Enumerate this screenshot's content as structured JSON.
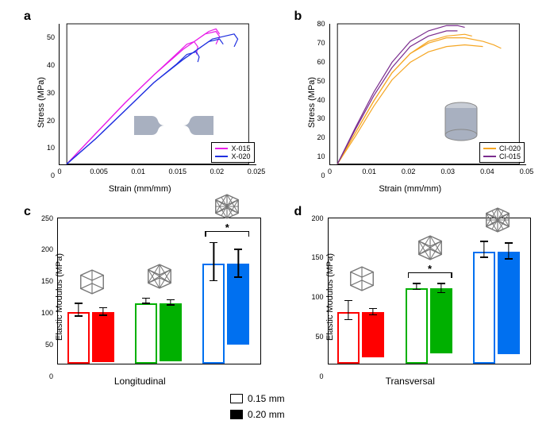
{
  "panels": {
    "a": {
      "label": "a",
      "ylabel": "Stress (MPa)",
      "xlabel": "Strain (mm/mm)",
      "xlim": [
        0,
        0.025
      ],
      "xticks": [
        0,
        0.005,
        0.01,
        0.015,
        0.02,
        0.025
      ],
      "ylim": [
        0,
        55
      ],
      "yticks": [
        0,
        10,
        20,
        30,
        40,
        50
      ],
      "series": [
        {
          "name": "X-015",
          "color": "#e81ee8",
          "curves": [
            [
              [
                0,
                0
              ],
              [
                0.004,
                12
              ],
              [
                0.008,
                24
              ],
              [
                0.012,
                35
              ],
              [
                0.016,
                45
              ],
              [
                0.019,
                51
              ],
              [
                0.0205,
                52
              ],
              [
                0.021,
                50
              ],
              [
                0.0205,
                47
              ]
            ],
            [
              [
                0,
                0
              ],
              [
                0.004,
                12
              ],
              [
                0.008,
                24
              ],
              [
                0.012,
                35
              ],
              [
                0.015,
                43
              ],
              [
                0.0165,
                47
              ],
              [
                0.0175,
                48
              ],
              [
                0.018,
                46
              ],
              [
                0.0178,
                43
              ]
            ],
            [
              [
                0,
                0
              ],
              [
                0.004,
                12
              ],
              [
                0.008,
                24
              ],
              [
                0.012,
                35
              ],
              [
                0.016,
                45
              ],
              [
                0.0195,
                52
              ],
              [
                0.0205,
                53
              ],
              [
                0.021,
                51
              ]
            ]
          ]
        },
        {
          "name": "X-020",
          "color": "#2030e0",
          "curves": [
            [
              [
                0,
                0
              ],
              [
                0.004,
                10
              ],
              [
                0.008,
                21
              ],
              [
                0.012,
                32
              ],
              [
                0.016,
                41
              ],
              [
                0.02,
                49
              ],
              [
                0.023,
                51
              ],
              [
                0.0235,
                49
              ],
              [
                0.023,
                46
              ]
            ],
            [
              [
                0,
                0
              ],
              [
                0.004,
                10
              ],
              [
                0.008,
                21
              ],
              [
                0.012,
                32
              ],
              [
                0.015,
                39
              ],
              [
                0.0165,
                43
              ],
              [
                0.0178,
                44
              ],
              [
                0.0182,
                42
              ],
              [
                0.018,
                40
              ]
            ],
            [
              [
                0,
                0
              ],
              [
                0.004,
                10
              ],
              [
                0.008,
                21
              ],
              [
                0.012,
                32
              ],
              [
                0.016,
                41
              ],
              [
                0.0195,
                48
              ],
              [
                0.021,
                49
              ],
              [
                0.0215,
                47
              ]
            ]
          ]
        }
      ],
      "legend": {
        "pos": "br",
        "items": [
          {
            "label": "X-015",
            "color": "#e81ee8"
          },
          {
            "label": "X-020",
            "color": "#2030e0"
          }
        ]
      }
    },
    "b": {
      "label": "b",
      "ylabel": "Stress (MPa)",
      "xlabel": "Strain (mm/mm)",
      "xlim": [
        0,
        0.05
      ],
      "xticks": [
        0,
        0.01,
        0.02,
        0.03,
        0.04,
        0.05
      ],
      "ylim": [
        0,
        80
      ],
      "yticks": [
        0,
        10,
        20,
        30,
        40,
        50,
        60,
        70,
        80
      ],
      "series": [
        {
          "name": "CI-020",
          "color": "#f5a623",
          "curves": [
            [
              [
                0,
                0
              ],
              [
                0.005,
                18
              ],
              [
                0.01,
                36
              ],
              [
                0.015,
                52
              ],
              [
                0.02,
                63
              ],
              [
                0.025,
                69
              ],
              [
                0.03,
                72
              ],
              [
                0.035,
                72
              ],
              [
                0.04,
                70
              ],
              [
                0.043,
                68
              ],
              [
                0.045,
                66
              ]
            ],
            [
              [
                0,
                0
              ],
              [
                0.005,
                16
              ],
              [
                0.01,
                33
              ],
              [
                0.015,
                48
              ],
              [
                0.02,
                58
              ],
              [
                0.025,
                64
              ],
              [
                0.03,
                67
              ],
              [
                0.035,
                68
              ],
              [
                0.04,
                67
              ]
            ],
            [
              [
                0,
                0
              ],
              [
                0.005,
                18
              ],
              [
                0.01,
                36
              ],
              [
                0.015,
                52
              ],
              [
                0.02,
                63
              ],
              [
                0.025,
                70
              ],
              [
                0.03,
                73
              ],
              [
                0.035,
                74
              ],
              [
                0.037,
                73
              ]
            ]
          ]
        },
        {
          "name": "CI-015",
          "color": "#7b2d8e",
          "curves": [
            [
              [
                0,
                0
              ],
              [
                0.005,
                21
              ],
              [
                0.01,
                41
              ],
              [
                0.015,
                58
              ],
              [
                0.02,
                70
              ],
              [
                0.025,
                76
              ],
              [
                0.03,
                79
              ],
              [
                0.033,
                79
              ],
              [
                0.035,
                78
              ]
            ],
            [
              [
                0,
                0
              ],
              [
                0.005,
                20
              ],
              [
                0.01,
                39
              ],
              [
                0.015,
                55
              ],
              [
                0.02,
                67
              ],
              [
                0.025,
                73
              ],
              [
                0.03,
                76
              ],
              [
                0.033,
                76
              ]
            ]
          ]
        }
      ],
      "legend": {
        "pos": "br",
        "items": [
          {
            "label": "CI-020",
            "color": "#f5a623"
          },
          {
            "label": "CI-015",
            "color": "#7b2d8e"
          }
        ]
      }
    },
    "c": {
      "label": "c",
      "ylabel": "Elastic Modulus (MPa)",
      "bottom_label": "Longitudinal",
      "ylim": [
        0,
        250
      ],
      "yticks": [
        0,
        50,
        100,
        150,
        200,
        250
      ],
      "groups": [
        {
          "color": "#ff0000",
          "open": 82,
          "open_err": 10,
          "filled": 80,
          "filled_err": 6
        },
        {
          "color": "#00b000",
          "open": 96,
          "open_err": 4,
          "filled": 92,
          "filled_err": 4
        },
        {
          "color": "#0070f0",
          "open": 158,
          "open_err": 30,
          "filled": 128,
          "filled_err": 22,
          "sig": true
        }
      ]
    },
    "d": {
      "label": "d",
      "ylabel": "Elastic Modulus (MPa)",
      "bottom_label": "Transversal",
      "ylim": [
        0,
        200
      ],
      "yticks": [
        0,
        50,
        100,
        150,
        200
      ],
      "groups": [
        {
          "color": "#ff0000",
          "open": 65,
          "open_err": 12,
          "filled": 57,
          "filled_err": 4
        },
        {
          "color": "#00b000",
          "open": 95,
          "open_err": 4,
          "filled": 82,
          "filled_err": 6,
          "sig": true
        },
        {
          "color": "#0070f0",
          "open": 142,
          "open_err": 10,
          "filled": 130,
          "filled_err": 10
        }
      ]
    }
  },
  "bottom_legend": [
    {
      "label": "0.15 mm",
      "filled": false
    },
    {
      "label": "0.20 mm",
      "filled": true
    }
  ],
  "colors": {
    "specimen": "#a8b0c0"
  }
}
